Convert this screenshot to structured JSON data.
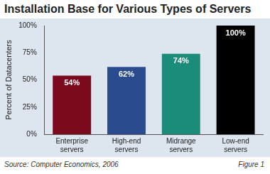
{
  "chart_data": {
    "type": "bar",
    "title": "Installation Base for Various Types of Servers",
    "ylabel": "Percent of Datacenters",
    "categories": [
      "Enterprise servers",
      "High-end servers",
      "Midrange servers",
      "Low-end servers"
    ],
    "values": [
      54,
      62,
      74,
      100
    ],
    "value_labels": [
      "54%",
      "62%",
      "74%",
      "100%"
    ],
    "colors": [
      "#7b0a1e",
      "#2a4b8d",
      "#1b8c7a",
      "#000000"
    ],
    "ylim": [
      0,
      100
    ],
    "yticks": [
      {
        "value": 0,
        "label": "0%"
      },
      {
        "value": 25,
        "label": "25%"
      },
      {
        "value": 50,
        "label": "50%"
      },
      {
        "value": 75,
        "label": "75%"
      },
      {
        "value": 100,
        "label": "100%"
      }
    ],
    "grid": false,
    "data_labels": true,
    "source": "Source: Computer Economics, 2006",
    "figure": "Figure 1"
  }
}
